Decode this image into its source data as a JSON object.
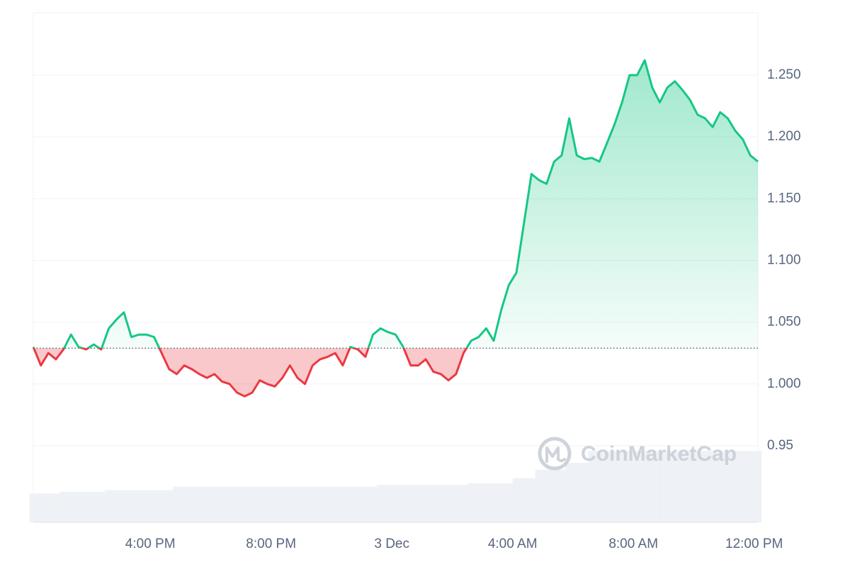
{
  "chart_data": {
    "type": "line",
    "watermark": "CoinMarketCap",
    "xlim": [
      0,
      96
    ],
    "xticks": [
      {
        "value": 15.5,
        "label": "4:00 PM"
      },
      {
        "value": 31.5,
        "label": "8:00 PM"
      },
      {
        "value": 47.5,
        "label": "3 Dec"
      },
      {
        "value": 63.5,
        "label": "4:00 AM"
      },
      {
        "value": 79.5,
        "label": "8:00 AM"
      },
      {
        "value": 95.5,
        "label": "12:00 PM"
      }
    ],
    "ylim": [
      0.888,
      1.3005
    ],
    "yticks": [
      0.95,
      {
        "value": 1.0,
        "label": "1.000"
      },
      {
        "value": 1.05,
        "label": "1.050"
      },
      {
        "value": 1.1,
        "label": "1.100"
      },
      {
        "value": 1.15,
        "label": "1.150"
      },
      {
        "value": 1.2,
        "label": "1.200"
      },
      {
        "value": 1.25,
        "label": "1.250"
      }
    ],
    "baseline": 1.029,
    "grid": true,
    "series": [
      {
        "name": "Price",
        "up_color": "#16c784",
        "down_color": "#ea3943",
        "values": [
          1.03,
          1.015,
          1.025,
          1.02,
          1.028,
          1.04,
          1.03,
          1.028,
          1.032,
          1.028,
          1.045,
          1.052,
          1.058,
          1.038,
          1.04,
          1.04,
          1.038,
          1.025,
          1.012,
          1.008,
          1.015,
          1.012,
          1.008,
          1.005,
          1.008,
          1.002,
          1.0,
          0.993,
          0.99,
          0.993,
          1.003,
          1.0,
          0.998,
          1.005,
          1.015,
          1.005,
          1.0,
          1.015,
          1.02,
          1.022,
          1.025,
          1.015,
          1.03,
          1.028,
          1.022,
          1.04,
          1.045,
          1.042,
          1.04,
          1.03,
          1.015,
          1.015,
          1.02,
          1.01,
          1.008,
          1.003,
          1.008,
          1.025,
          1.035,
          1.038,
          1.045,
          1.035,
          1.06,
          1.08,
          1.09,
          1.13,
          1.17,
          1.165,
          1.162,
          1.18,
          1.185,
          1.215,
          1.185,
          1.182,
          1.183,
          1.18,
          1.195,
          1.21,
          1.228,
          1.25,
          1.25,
          1.262,
          1.24,
          1.228,
          1.24,
          1.245,
          1.238,
          1.23,
          1.218,
          1.215,
          1.208,
          1.22,
          1.215,
          1.205,
          1.198,
          1.185,
          1.18
        ]
      },
      {
        "name": "Volume",
        "axis": "y3",
        "color": "#eef1f5",
        "values": [
          17,
          17,
          17,
          17,
          18,
          18,
          18,
          18,
          18,
          18,
          19,
          19,
          19,
          19,
          19,
          19,
          19,
          19,
          19,
          21,
          21,
          21,
          21,
          21,
          21,
          21,
          21,
          21,
          21,
          21,
          21,
          21,
          21,
          21,
          21,
          21,
          21,
          21,
          21,
          21,
          21,
          21,
          21,
          21,
          21,
          21,
          22,
          22,
          22,
          22,
          22,
          22,
          22,
          22,
          22,
          22,
          22,
          22,
          23,
          23,
          23,
          23,
          23,
          23,
          26,
          26,
          26,
          31,
          31,
          31,
          31,
          35,
          35,
          35,
          42,
          42,
          42,
          42,
          42,
          42,
          42,
          42,
          42,
          42,
          42,
          42,
          42,
          42,
          42,
          42,
          42,
          42,
          42,
          42,
          42,
          42,
          42
        ]
      }
    ],
    "y3lim": [
      0,
      300
    ]
  }
}
